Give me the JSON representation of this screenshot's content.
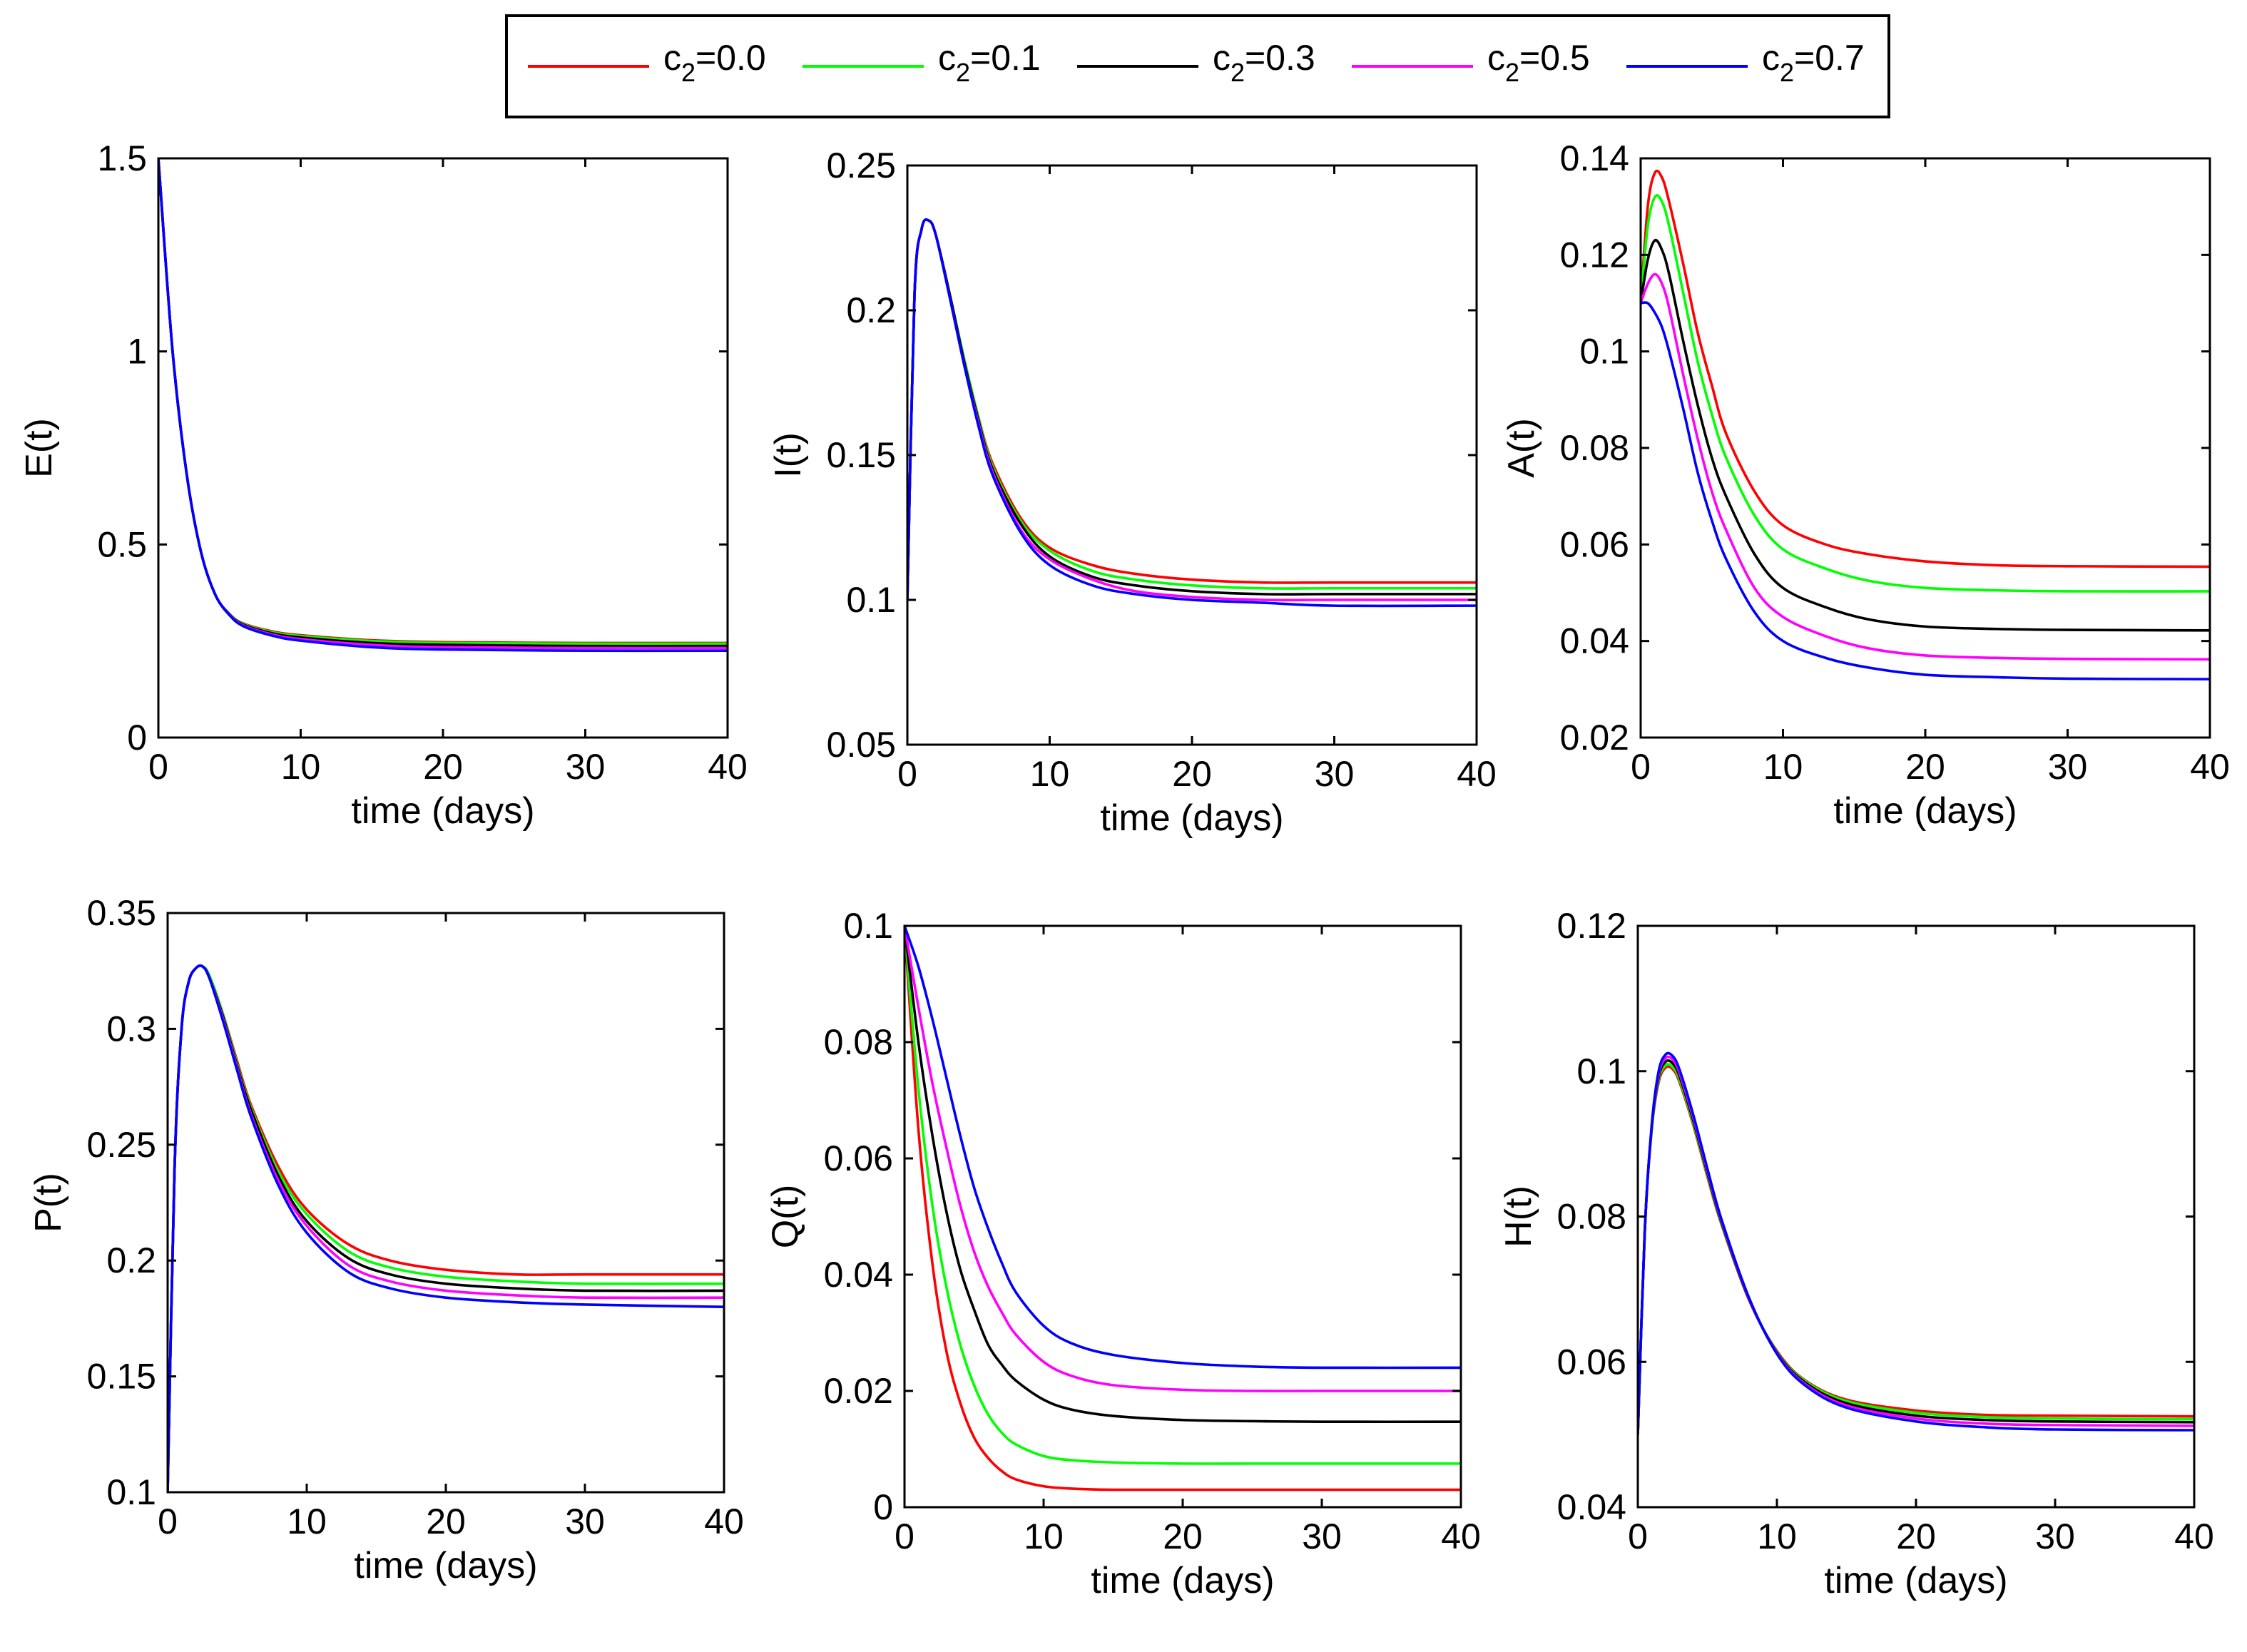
{
  "legend": {
    "entries": [
      {
        "base": "c",
        "sub": "2",
        "tail": "=0.0",
        "color": "#ff0000"
      },
      {
        "base": "c",
        "sub": "2",
        "tail": "=0.1",
        "color": "#00ff00"
      },
      {
        "base": "c",
        "sub": "2",
        "tail": "=0.3",
        "color": "#000000"
      },
      {
        "base": "c",
        "sub": "2",
        "tail": "=0.5",
        "color": "#ff00ff"
      },
      {
        "base": "c",
        "sub": "2",
        "tail": "=0.7",
        "color": "#0000ff"
      }
    ]
  },
  "chart_data": [
    {
      "type": "line",
      "ylabel": "E(t)",
      "xlabel": "time (days)",
      "xlim": [
        0,
        40
      ],
      "ylim": [
        0,
        1.5
      ],
      "xticks": [
        "0",
        "10",
        "20",
        "30",
        "40"
      ],
      "yticks": [
        "0",
        "0.5",
        "1",
        "1.5"
      ],
      "x": [
        0,
        1,
        2,
        3,
        4,
        5,
        6,
        8,
        10,
        15,
        20,
        30,
        40
      ],
      "series": [
        {
          "name": "c2=0.0",
          "color": "#ff0000",
          "values": [
            1.5,
            1.0,
            0.68,
            0.48,
            0.37,
            0.32,
            0.295,
            0.275,
            0.265,
            0.252,
            0.247,
            0.245,
            0.245
          ]
        },
        {
          "name": "c2=0.1",
          "color": "#00ff00",
          "values": [
            1.5,
            1.0,
            0.68,
            0.48,
            0.37,
            0.32,
            0.294,
            0.273,
            0.263,
            0.25,
            0.245,
            0.243,
            0.243
          ]
        },
        {
          "name": "c2=0.3",
          "color": "#000000",
          "values": [
            1.5,
            1.0,
            0.68,
            0.48,
            0.37,
            0.319,
            0.292,
            0.27,
            0.259,
            0.245,
            0.24,
            0.237,
            0.237
          ]
        },
        {
          "name": "c2=0.5",
          "color": "#ff00ff",
          "values": [
            1.5,
            1.0,
            0.68,
            0.48,
            0.37,
            0.318,
            0.29,
            0.267,
            0.255,
            0.24,
            0.234,
            0.232,
            0.232
          ]
        },
        {
          "name": "c2=0.7",
          "color": "#0000ff",
          "values": [
            1.5,
            1.0,
            0.68,
            0.48,
            0.37,
            0.317,
            0.288,
            0.264,
            0.251,
            0.234,
            0.228,
            0.225,
            0.225
          ]
        }
      ]
    },
    {
      "type": "line",
      "ylabel": "I(t)",
      "xlabel": "time (days)",
      "xlim": [
        0,
        40
      ],
      "ylim": [
        0.05,
        0.25
      ],
      "xticks": [
        "0",
        "10",
        "20",
        "30",
        "40"
      ],
      "yticks": [
        "0.05",
        "0.1",
        "0.15",
        "0.2",
        "0.25"
      ],
      "x": [
        0,
        0.5,
        1,
        1.5,
        2,
        3,
        4,
        5,
        6,
        8,
        10,
        13,
        16,
        20,
        25,
        30,
        40
      ],
      "series": [
        {
          "name": "c2=0.0",
          "color": "#ff0000",
          "values": [
            0.1,
            0.205,
            0.228,
            0.231,
            0.226,
            0.205,
            0.183,
            0.163,
            0.147,
            0.128,
            0.118,
            0.112,
            0.109,
            0.107,
            0.106,
            0.106,
            0.106
          ]
        },
        {
          "name": "c2=0.1",
          "color": "#00ff00",
          "values": [
            0.1,
            0.205,
            0.228,
            0.231,
            0.226,
            0.205,
            0.183,
            0.163,
            0.146,
            0.127,
            0.117,
            0.11,
            0.107,
            0.105,
            0.104,
            0.104,
            0.104
          ]
        },
        {
          "name": "c2=0.3",
          "color": "#000000",
          "values": [
            0.1,
            0.205,
            0.228,
            0.231,
            0.226,
            0.205,
            0.182,
            0.162,
            0.145,
            0.126,
            0.115,
            0.108,
            0.105,
            0.103,
            0.102,
            0.102,
            0.102
          ]
        },
        {
          "name": "c2=0.5",
          "color": "#ff00ff",
          "values": [
            0.1,
            0.205,
            0.228,
            0.231,
            0.226,
            0.204,
            0.181,
            0.161,
            0.144,
            0.124,
            0.114,
            0.107,
            0.103,
            0.101,
            0.1,
            0.1,
            0.1
          ]
        },
        {
          "name": "c2=0.7",
          "color": "#0000ff",
          "values": [
            0.1,
            0.205,
            0.228,
            0.231,
            0.226,
            0.204,
            0.181,
            0.16,
            0.143,
            0.123,
            0.112,
            0.105,
            0.102,
            0.1,
            0.099,
            0.098,
            0.098
          ]
        }
      ]
    },
    {
      "type": "line",
      "ylabel": "A(t)",
      "xlabel": "time (days)",
      "xlim": [
        0,
        40
      ],
      "ylim": [
        0.02,
        0.14
      ],
      "xticks": [
        "0",
        "10",
        "20",
        "30",
        "40"
      ],
      "yticks": [
        "0.02",
        "0.04",
        "0.06",
        "0.08",
        "0.1",
        "0.12",
        "0.14"
      ],
      "x": [
        0,
        0.5,
        1,
        1.5,
        2,
        3,
        4,
        5,
        6,
        8,
        10,
        13,
        16,
        20,
        25,
        30,
        40
      ],
      "series": [
        {
          "name": "c2=0.0",
          "color": "#ff0000",
          "values": [
            0.11,
            0.13,
            0.137,
            0.136,
            0.131,
            0.118,
            0.104,
            0.093,
            0.083,
            0.071,
            0.064,
            0.06,
            0.058,
            0.0565,
            0.0557,
            0.0555,
            0.0554
          ]
        },
        {
          "name": "c2=0.1",
          "color": "#00ff00",
          "values": [
            0.11,
            0.126,
            0.132,
            0.131,
            0.126,
            0.112,
            0.098,
            0.087,
            0.078,
            0.066,
            0.059,
            0.055,
            0.0525,
            0.051,
            0.0505,
            0.0503,
            0.0503
          ]
        },
        {
          "name": "c2=0.3",
          "color": "#000000",
          "values": [
            0.11,
            0.119,
            0.123,
            0.121,
            0.116,
            0.102,
            0.089,
            0.078,
            0.07,
            0.058,
            0.051,
            0.047,
            0.0445,
            0.043,
            0.0425,
            0.0423,
            0.0422
          ]
        },
        {
          "name": "c2=0.5",
          "color": "#ff00ff",
          "values": [
            0.11,
            0.114,
            0.116,
            0.114,
            0.109,
            0.095,
            0.082,
            0.071,
            0.063,
            0.051,
            0.045,
            0.041,
            0.0385,
            0.037,
            0.0365,
            0.0363,
            0.0362
          ]
        },
        {
          "name": "c2=0.7",
          "color": "#0000ff",
          "values": [
            0.11,
            0.11,
            0.108,
            0.105,
            0.1,
            0.088,
            0.075,
            0.065,
            0.057,
            0.046,
            0.04,
            0.0365,
            0.0345,
            0.033,
            0.0325,
            0.0322,
            0.0321
          ]
        }
      ]
    },
    {
      "type": "line",
      "ylabel": "P(t)",
      "xlabel": "time (days)",
      "xlim": [
        0,
        40
      ],
      "ylim": [
        0.1,
        0.35
      ],
      "xticks": [
        "0",
        "10",
        "20",
        "30",
        "40"
      ],
      "yticks": [
        "0.1",
        "0.15",
        "0.2",
        "0.25",
        "0.3",
        "0.35"
      ],
      "x": [
        0,
        0.5,
        1,
        1.5,
        2,
        2.5,
        3,
        4,
        5,
        6,
        8,
        10,
        13,
        16,
        20,
        25,
        30,
        40
      ],
      "series": [
        {
          "name": "c2=0.0",
          "color": "#ff0000",
          "values": [
            0.1,
            0.24,
            0.3,
            0.32,
            0.326,
            0.327,
            0.323,
            0.306,
            0.286,
            0.267,
            0.24,
            0.222,
            0.207,
            0.2,
            0.196,
            0.194,
            0.194,
            0.194
          ]
        },
        {
          "name": "c2=0.1",
          "color": "#00ff00",
          "values": [
            0.1,
            0.24,
            0.3,
            0.32,
            0.326,
            0.327,
            0.323,
            0.306,
            0.285,
            0.266,
            0.238,
            0.22,
            0.204,
            0.197,
            0.193,
            0.191,
            0.19,
            0.19
          ]
        },
        {
          "name": "c2=0.3",
          "color": "#000000",
          "values": [
            0.1,
            0.24,
            0.3,
            0.32,
            0.326,
            0.327,
            0.322,
            0.305,
            0.284,
            0.265,
            0.236,
            0.217,
            0.201,
            0.194,
            0.19,
            0.188,
            0.187,
            0.187
          ]
        },
        {
          "name": "c2=0.5",
          "color": "#ff00ff",
          "values": [
            0.1,
            0.24,
            0.3,
            0.32,
            0.326,
            0.327,
            0.322,
            0.304,
            0.283,
            0.263,
            0.234,
            0.215,
            0.198,
            0.191,
            0.187,
            0.185,
            0.184,
            0.184
          ]
        },
        {
          "name": "c2=0.7",
          "color": "#0000ff",
          "values": [
            0.1,
            0.24,
            0.3,
            0.32,
            0.326,
            0.327,
            0.322,
            0.303,
            0.282,
            0.262,
            0.232,
            0.212,
            0.195,
            0.188,
            0.184,
            0.182,
            0.181,
            0.18
          ]
        }
      ]
    },
    {
      "type": "line",
      "ylabel": "Q(t)",
      "xlabel": "time (days)",
      "xlim": [
        0,
        40
      ],
      "ylim": [
        0,
        0.1
      ],
      "xticks": [
        "0",
        "10",
        "20",
        "30",
        "40"
      ],
      "yticks": [
        "0",
        "0.02",
        "0.04",
        "0.06",
        "0.08",
        "0.1"
      ],
      "x": [
        0,
        1,
        2,
        3,
        4,
        5,
        6,
        7,
        8,
        10,
        12,
        15,
        20,
        25,
        30,
        40
      ],
      "series": [
        {
          "name": "c2=0.0",
          "color": "#ff0000",
          "values": [
            0.1,
            0.065,
            0.042,
            0.027,
            0.018,
            0.012,
            0.0085,
            0.0062,
            0.0048,
            0.0036,
            0.0032,
            0.003,
            0.003,
            0.003,
            0.003,
            0.003
          ]
        },
        {
          "name": "c2=0.1",
          "color": "#00ff00",
          "values": [
            0.1,
            0.072,
            0.052,
            0.038,
            0.028,
            0.021,
            0.016,
            0.0128,
            0.0108,
            0.0088,
            0.0081,
            0.0077,
            0.0075,
            0.0075,
            0.0075,
            0.0075
          ]
        },
        {
          "name": "c2=0.3",
          "color": "#000000",
          "values": [
            0.1,
            0.08,
            0.064,
            0.051,
            0.041,
            0.034,
            0.028,
            0.0245,
            0.0218,
            0.0185,
            0.0168,
            0.0157,
            0.015,
            0.0148,
            0.0147,
            0.0147
          ]
        },
        {
          "name": "c2=0.5",
          "color": "#ff00ff",
          "values": [
            0.1,
            0.086,
            0.073,
            0.062,
            0.052,
            0.044,
            0.038,
            0.0335,
            0.0297,
            0.025,
            0.0226,
            0.021,
            0.0202,
            0.02,
            0.02,
            0.02
          ]
        },
        {
          "name": "c2=0.7",
          "color": "#0000ff",
          "values": [
            0.1,
            0.093,
            0.084,
            0.074,
            0.064,
            0.055,
            0.048,
            0.042,
            0.037,
            0.0312,
            0.0282,
            0.0262,
            0.0248,
            0.0242,
            0.024,
            0.024
          ]
        }
      ]
    },
    {
      "type": "line",
      "ylabel": "H(t)",
      "xlabel": "time (days)",
      "xlim": [
        0,
        40
      ],
      "ylim": [
        0.04,
        0.12
      ],
      "xticks": [
        "0",
        "10",
        "20",
        "30",
        "40"
      ],
      "yticks": [
        "0.04",
        "0.06",
        "0.08",
        "0.1",
        "0.12"
      ],
      "x": [
        0,
        0.5,
        1,
        1.5,
        2,
        2.5,
        3,
        4,
        5,
        6,
        8,
        10,
        12,
        15,
        20,
        25,
        30,
        40
      ],
      "series": [
        {
          "name": "c2=0.0",
          "color": "#ff0000",
          "values": [
            0.05,
            0.078,
            0.092,
            0.0985,
            0.1005,
            0.1003,
            0.0985,
            0.0925,
            0.0855,
            0.079,
            0.0685,
            0.0615,
            0.0575,
            0.0548,
            0.0533,
            0.0527,
            0.0526,
            0.0525
          ]
        },
        {
          "name": "c2=0.1",
          "color": "#00ff00",
          "values": [
            0.05,
            0.078,
            0.092,
            0.0988,
            0.1008,
            0.1006,
            0.0988,
            0.0927,
            0.0857,
            0.0791,
            0.0686,
            0.0614,
            0.0574,
            0.0546,
            0.053,
            0.0524,
            0.0522,
            0.0521
          ]
        },
        {
          "name": "c2=0.3",
          "color": "#000000",
          "values": [
            0.05,
            0.078,
            0.0922,
            0.0992,
            0.1013,
            0.1011,
            0.0993,
            0.0931,
            0.086,
            0.0793,
            0.0686,
            0.0613,
            0.0572,
            0.0543,
            0.0526,
            0.052,
            0.0518,
            0.0517
          ]
        },
        {
          "name": "c2=0.5",
          "color": "#ff00ff",
          "values": [
            0.05,
            0.078,
            0.0924,
            0.0996,
            0.1018,
            0.1016,
            0.0997,
            0.0935,
            0.0863,
            0.0795,
            0.0687,
            0.0612,
            0.057,
            0.054,
            0.0522,
            0.0515,
            0.0513,
            0.0512
          ]
        },
        {
          "name": "c2=0.7",
          "color": "#0000ff",
          "values": [
            0.05,
            0.078,
            0.0926,
            0.1,
            0.1023,
            0.1021,
            0.1002,
            0.0939,
            0.0866,
            0.0797,
            0.0688,
            0.0611,
            0.0568,
            0.0537,
            0.0518,
            0.051,
            0.0507,
            0.0506
          ]
        }
      ]
    }
  ]
}
